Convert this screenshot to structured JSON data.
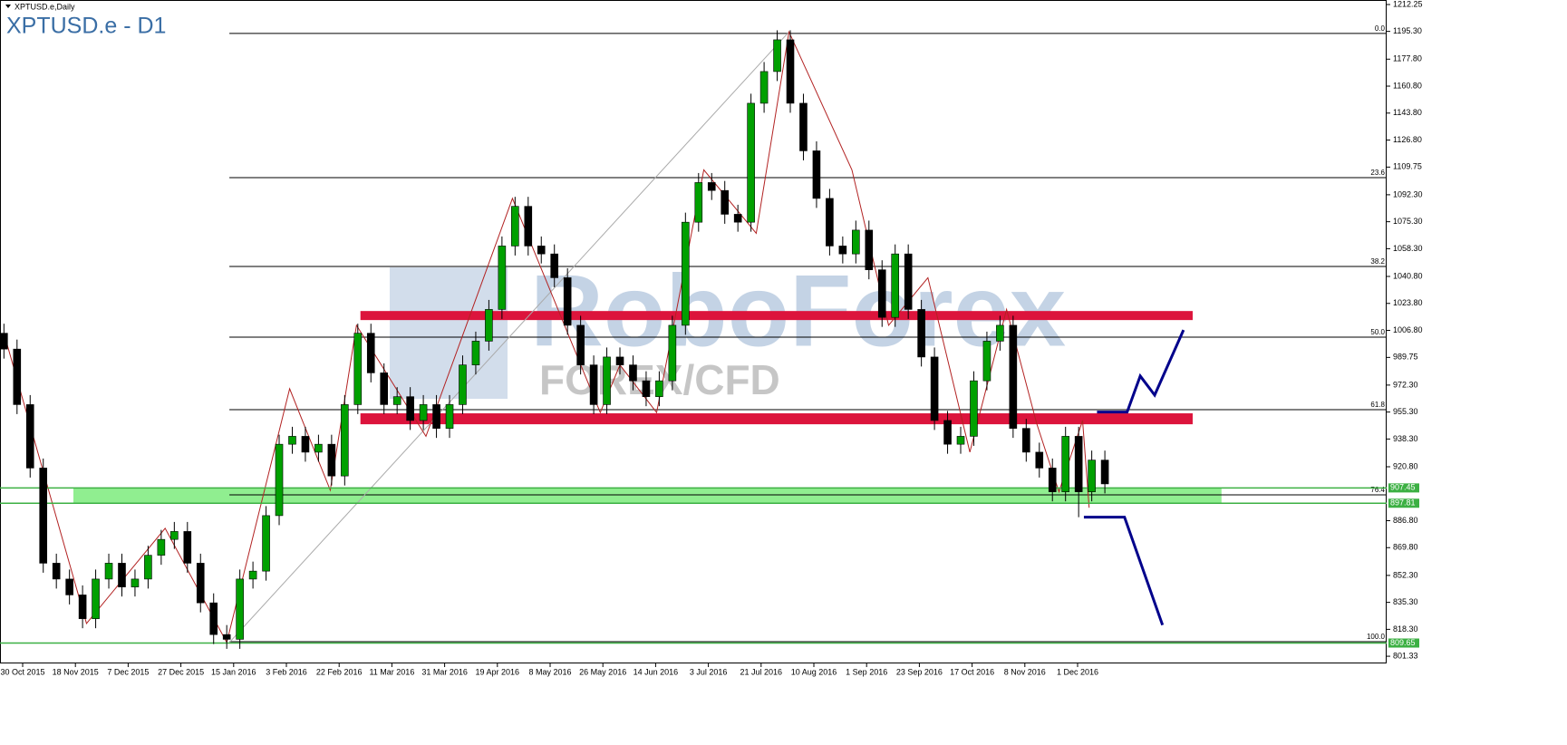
{
  "chart_data": {
    "type": "candlestick",
    "symbol_label": "XPTUSD.e,Daily",
    "title": "XPTUSD.e - D1",
    "watermark": "RoboForex",
    "watermark_sub": "FOREX/CFD",
    "bull_color": "#00a000",
    "bear_color": "#000000",
    "ylim": [
      796.8,
      1215.1
    ],
    "xlim": [
      -0.3,
      105.5
    ],
    "yticks": [
      1212.25,
      {
        "value": 1195.3,
        "label": "1195.30"
      },
      {
        "value": 1177.8,
        "label": "1177.80"
      },
      {
        "value": 1160.8,
        "label": "1160.80"
      },
      {
        "value": 1143.8,
        "label": "1143.80"
      },
      {
        "value": 1126.8,
        "label": "1126.80"
      },
      1109.75,
      {
        "value": 1092.3,
        "label": "1092.30"
      },
      {
        "value": 1075.3,
        "label": "1075.30"
      },
      {
        "value": 1058.3,
        "label": "1058.30"
      },
      {
        "value": 1040.8,
        "label": "1040.80"
      },
      {
        "value": 1023.8,
        "label": "1023.80"
      },
      {
        "value": 1006.8,
        "label": "1006.80"
      },
      989.75,
      {
        "value": 972.3,
        "label": "972.30"
      },
      {
        "value": 955.3,
        "label": "955.30"
      },
      {
        "value": 938.3,
        "label": "938.30"
      },
      {
        "value": 920.8,
        "label": "920.80"
      },
      {
        "value": 886.8,
        "label": "886.80"
      },
      {
        "value": 869.8,
        "label": "869.80"
      },
      {
        "value": 852.3,
        "label": "852.30"
      },
      {
        "value": 835.3,
        "label": "835.30"
      },
      {
        "value": 818.3,
        "label": "818.30"
      },
      801.33
    ],
    "dates": [
      "30 Oct 2015",
      "18 Nov 2015",
      "7 Dec 2015",
      "27 Dec 2015",
      "15 Jan 2016",
      "3 Feb 2016",
      "22 Feb 2016",
      "11 Mar 2016",
      "31 Mar 2016",
      "19 Apr 2016",
      "8 May 2016",
      "26 May 2016",
      "14 Jun 2016",
      "3 Jul 2016",
      "21 Jul 2016",
      "10 Aug 2016",
      "1 Sep 2016",
      "23 Sep 2016",
      "17 Oct 2016",
      "8 Nov 2016",
      "1 Dec 2016"
    ],
    "candles": [
      [
        1005,
        1011,
        989,
        995
      ],
      [
        995,
        1001,
        954,
        960
      ],
      [
        960,
        966,
        914,
        920
      ],
      [
        920,
        926,
        854,
        860
      ],
      [
        860,
        866,
        844,
        850
      ],
      [
        850,
        856,
        834,
        840
      ],
      [
        840,
        846,
        819,
        825
      ],
      [
        825,
        856,
        819,
        850
      ],
      [
        850,
        866,
        844,
        860
      ],
      [
        860,
        866,
        839,
        845
      ],
      [
        845,
        856,
        839,
        850
      ],
      [
        850,
        871,
        844,
        865
      ],
      [
        865,
        881,
        859,
        875
      ],
      [
        875,
        886,
        869,
        880
      ],
      [
        880,
        886,
        854,
        860
      ],
      [
        860,
        866,
        829,
        835
      ],
      [
        835,
        841,
        809,
        815
      ],
      [
        815,
        821,
        806,
        812
      ],
      [
        812,
        856,
        806,
        850
      ],
      [
        850,
        861,
        844,
        855
      ],
      [
        855,
        896,
        849,
        890
      ],
      [
        890,
        941,
        884,
        935
      ],
      [
        935,
        946,
        929,
        940
      ],
      [
        940,
        946,
        924,
        930
      ],
      [
        930,
        941,
        924,
        935
      ],
      [
        935,
        941,
        909,
        915
      ],
      [
        915,
        966,
        909,
        960
      ],
      [
        960,
        1011,
        954,
        1005
      ],
      [
        1005,
        1011,
        974,
        980
      ],
      [
        980,
        986,
        954,
        960
      ],
      [
        960,
        971,
        954,
        965
      ],
      [
        965,
        971,
        944,
        950
      ],
      [
        950,
        966,
        944,
        960
      ],
      [
        960,
        966,
        939,
        945
      ],
      [
        945,
        966,
        939,
        960
      ],
      [
        960,
        991,
        954,
        985
      ],
      [
        985,
        1006,
        979,
        1000
      ],
      [
        1000,
        1026,
        994,
        1020
      ],
      [
        1020,
        1066,
        1014,
        1060
      ],
      [
        1060,
        1091,
        1054,
        1085
      ],
      [
        1085,
        1091,
        1054,
        1060
      ],
      [
        1060,
        1066,
        1049,
        1055
      ],
      [
        1055,
        1061,
        1034,
        1040
      ],
      [
        1040,
        1046,
        1004,
        1010
      ],
      [
        1010,
        1016,
        979,
        985
      ],
      [
        985,
        991,
        954,
        960
      ],
      [
        960,
        996,
        954,
        990
      ],
      [
        990,
        996,
        979,
        985
      ],
      [
        985,
        991,
        969,
        975
      ],
      [
        975,
        981,
        959,
        965
      ],
      [
        965,
        981,
        959,
        975
      ],
      [
        975,
        1016,
        969,
        1010
      ],
      [
        1010,
        1081,
        1004,
        1075
      ],
      [
        1075,
        1106,
        1069,
        1100
      ],
      [
        1100,
        1106,
        1089,
        1095
      ],
      [
        1095,
        1101,
        1074,
        1080
      ],
      [
        1080,
        1086,
        1069,
        1075
      ],
      [
        1075,
        1156,
        1069,
        1150
      ],
      [
        1150,
        1176,
        1144,
        1170
      ],
      [
        1170,
        1196,
        1164,
        1190
      ],
      [
        1190,
        1196,
        1144,
        1150
      ],
      [
        1150,
        1156,
        1114,
        1120
      ],
      [
        1120,
        1126,
        1084,
        1090
      ],
      [
        1090,
        1096,
        1054,
        1060
      ],
      [
        1060,
        1066,
        1049,
        1055
      ],
      [
        1055,
        1076,
        1049,
        1070
      ],
      [
        1070,
        1076,
        1039,
        1045
      ],
      [
        1045,
        1051,
        1009,
        1015
      ],
      [
        1015,
        1061,
        1009,
        1055
      ],
      [
        1055,
        1061,
        1014,
        1020
      ],
      [
        1020,
        1026,
        984,
        990
      ],
      [
        990,
        996,
        944,
        950
      ],
      [
        950,
        956,
        929,
        935
      ],
      [
        935,
        946,
        929,
        940
      ],
      [
        940,
        981,
        934,
        975
      ],
      [
        975,
        1006,
        969,
        1000
      ],
      [
        1000,
        1016,
        994,
        1010
      ],
      [
        1010,
        1016,
        939,
        945
      ],
      [
        945,
        951,
        924,
        930
      ],
      [
        930,
        936,
        914,
        920
      ],
      [
        920,
        926,
        899,
        905
      ],
      [
        905,
        946,
        899,
        940
      ],
      [
        940,
        946,
        889,
        905
      ],
      [
        905,
        931,
        899,
        925
      ],
      [
        925,
        931,
        904,
        910
      ]
    ],
    "fibo": [
      {
        "label": "0.0",
        "price": 1194
      },
      {
        "label": "23.6",
        "price": 1103.1
      },
      {
        "label": "38.2",
        "price": 1047.1
      },
      {
        "label": "50.0",
        "price": 1002.5
      },
      {
        "label": "61.8",
        "price": 956.8
      },
      {
        "label": "76.4",
        "price": 903.1
      },
      {
        "label": "100.0",
        "price": 810.5
      }
    ],
    "fibo_start": 17.2,
    "fibo_anchor": {
      "x": [
        17.2,
        59.9
      ],
      "y": [
        810,
        1195
      ]
    },
    "price_lines": [
      {
        "value": 907.45,
        "label": "907.45",
        "color": "#3cb043"
      },
      {
        "value": 897.81,
        "label": "897.81",
        "color": "#3cb043"
      },
      {
        "value": 809.65,
        "label": "809.65",
        "color": "#3cb043"
      }
    ],
    "zones": [
      {
        "color": "#dc143c",
        "from": 1013.3,
        "to": 1019.0,
        "start": 27.2,
        "end": 90.7
      },
      {
        "color": "#dc143c",
        "from": 947.6,
        "to": 954.5,
        "start": 27.2,
        "end": 90.7
      },
      {
        "color": "#90ee90",
        "from": 897.81,
        "to": 907.45,
        "start": 5.3,
        "end": 92.9
      }
    ],
    "zigzag": {
      "x": [
        0,
        6.3,
        12.3,
        17,
        21.8,
        24.9,
        26.9,
        32.2,
        38.8,
        45.5,
        47,
        49.8,
        53.4,
        57.4,
        59.9,
        64.7,
        67.5,
        70.5,
        73.7,
        76.5,
        78.8,
        80.5,
        82.3,
        82.8
      ],
      "y": [
        1005,
        822,
        882,
        810,
        970,
        906,
        1010,
        940,
        1090,
        955,
        985,
        955,
        1108,
        1068,
        1195,
        1108,
        1010,
        1040,
        930,
        1020,
        948,
        905,
        950,
        895
      ]
    },
    "forecasts": [
      {
        "x": [
          83.4,
          85.7,
          86.7,
          87.8,
          90
        ],
        "y": [
          955.3,
          955.3,
          978,
          966,
          1007
        ]
      },
      {
        "x": [
          82.4,
          85.5,
          88.4
        ],
        "y": [
          889,
          889,
          821
        ]
      }
    ],
    "forecast_color": "#00008b"
  }
}
